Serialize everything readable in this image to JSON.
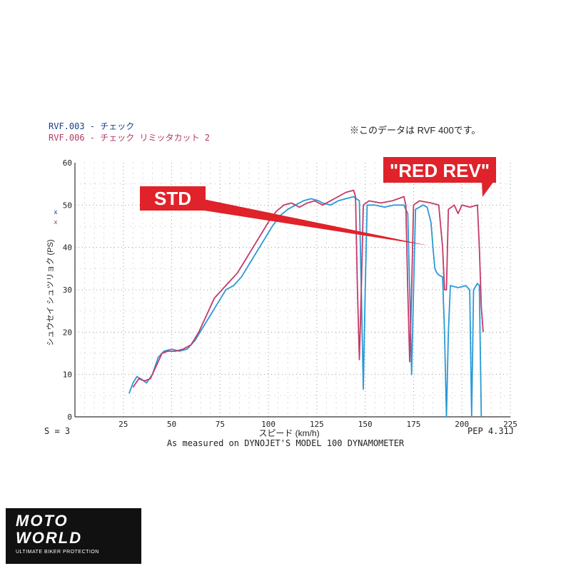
{
  "header": {
    "legend_line_1": "RVF.003 - チェック",
    "legend_line_2": "RVF.006 - チェック リミッタカット 2",
    "note": "※このデータは RVF 400です。",
    "colors": {
      "blue": "#2a9ad6",
      "red": "#c43a6a",
      "legend_blue": "#1a3d8c",
      "legend_red": "#b03a68",
      "callout": "#e0222a"
    }
  },
  "callouts": {
    "std": "STD",
    "red_rev": "\"RED REV\""
  },
  "footer": {
    "smoothing": "S = 3",
    "code": "PEP 4.31J",
    "measured": "As measured on DYNOJET'S MODEL 100 DYNAMOMETER"
  },
  "logo": {
    "line1": "MOTO",
    "line2": "WORLD",
    "tagline": "ULTIMATE BIKER PROTECTION"
  },
  "chart_data": {
    "type": "line",
    "title": "",
    "xlabel": "スピード (km/h)",
    "ylabel": "シュウセイ シュツリョク (PS)",
    "xlim": [
      0,
      225
    ],
    "ylim": [
      0,
      60
    ],
    "xticks": [
      25,
      50,
      75,
      100,
      125,
      150,
      175,
      200,
      225
    ],
    "yticks": [
      0,
      10,
      20,
      30,
      40,
      50,
      60
    ],
    "grid": "dotted",
    "series": [
      {
        "name": "RVF.003 - チェック",
        "color": "#2a9ad6",
        "points": [
          [
            28,
            5.5
          ],
          [
            30,
            8
          ],
          [
            32,
            9.5
          ],
          [
            34,
            9
          ],
          [
            37,
            8
          ],
          [
            40,
            10
          ],
          [
            43,
            14
          ],
          [
            46,
            15.5
          ],
          [
            50,
            16
          ],
          [
            54,
            15.5
          ],
          [
            58,
            16
          ],
          [
            62,
            18
          ],
          [
            66,
            21
          ],
          [
            70,
            24
          ],
          [
            74,
            27
          ],
          [
            78,
            30
          ],
          [
            82,
            31
          ],
          [
            86,
            33
          ],
          [
            90,
            36
          ],
          [
            94,
            39
          ],
          [
            98,
            42
          ],
          [
            102,
            45
          ],
          [
            106,
            47.5
          ],
          [
            110,
            49
          ],
          [
            114,
            50
          ],
          [
            118,
            51
          ],
          [
            122,
            51.5
          ],
          [
            126,
            51
          ],
          [
            128,
            50.5
          ],
          [
            132,
            50
          ],
          [
            136,
            51
          ],
          [
            140,
            51.5
          ],
          [
            144,
            52
          ],
          [
            147,
            51
          ],
          [
            148,
            30
          ],
          [
            149,
            6.5
          ],
          [
            150,
            30
          ],
          [
            151,
            50
          ],
          [
            155,
            50
          ],
          [
            160,
            49.5
          ],
          [
            165,
            50
          ],
          [
            170,
            50
          ],
          [
            172,
            48
          ],
          [
            173,
            30
          ],
          [
            174,
            10
          ],
          [
            175,
            30
          ],
          [
            176,
            49
          ],
          [
            180,
            50
          ],
          [
            182,
            49.5
          ],
          [
            184,
            46
          ],
          [
            185,
            40
          ],
          [
            186,
            35
          ],
          [
            187,
            34
          ],
          [
            188,
            33.5
          ],
          [
            190,
            33
          ],
          [
            191,
            20
          ],
          [
            192,
            0
          ],
          [
            193,
            20
          ],
          [
            194,
            31
          ],
          [
            198,
            30.5
          ],
          [
            202,
            31
          ],
          [
            204,
            30
          ],
          [
            205,
            0
          ],
          [
            206,
            30
          ],
          [
            208,
            31.5
          ],
          [
            209,
            31
          ],
          [
            210,
            0
          ]
        ]
      },
      {
        "name": "RVF.006 - チェック リミッタカット 2",
        "color": "#c43a6a",
        "points": [
          [
            30,
            7
          ],
          [
            33,
            9
          ],
          [
            36,
            8.5
          ],
          [
            39,
            9
          ],
          [
            42,
            12
          ],
          [
            45,
            15
          ],
          [
            48,
            15.5
          ],
          [
            52,
            15.5
          ],
          [
            56,
            16
          ],
          [
            60,
            17
          ],
          [
            64,
            20
          ],
          [
            68,
            24
          ],
          [
            72,
            28
          ],
          [
            76,
            30
          ],
          [
            80,
            32
          ],
          [
            84,
            34
          ],
          [
            88,
            37
          ],
          [
            92,
            40
          ],
          [
            96,
            43
          ],
          [
            100,
            46
          ],
          [
            104,
            48.5
          ],
          [
            108,
            50
          ],
          [
            112,
            50.5
          ],
          [
            116,
            49.5
          ],
          [
            120,
            50.5
          ],
          [
            124,
            51
          ],
          [
            128,
            50
          ],
          [
            132,
            51
          ],
          [
            136,
            52
          ],
          [
            140,
            53
          ],
          [
            144,
            53.5
          ],
          [
            145,
            52
          ],
          [
            146,
            30
          ],
          [
            147,
            13.5
          ],
          [
            148,
            30
          ],
          [
            149,
            50
          ],
          [
            152,
            51
          ],
          [
            158,
            50.5
          ],
          [
            164,
            51
          ],
          [
            170,
            52
          ],
          [
            171,
            50
          ],
          [
            172,
            30
          ],
          [
            173,
            13
          ],
          [
            174,
            30
          ],
          [
            175,
            50
          ],
          [
            178,
            51
          ],
          [
            184,
            50.5
          ],
          [
            188,
            50
          ],
          [
            190,
            40
          ],
          [
            191,
            30
          ],
          [
            192,
            30
          ],
          [
            193,
            49
          ],
          [
            196,
            50
          ],
          [
            198,
            48
          ],
          [
            199,
            49
          ],
          [
            200,
            50
          ],
          [
            204,
            49.5
          ],
          [
            208,
            50
          ],
          [
            209,
            40
          ],
          [
            210,
            26
          ],
          [
            211,
            20
          ]
        ]
      }
    ]
  }
}
